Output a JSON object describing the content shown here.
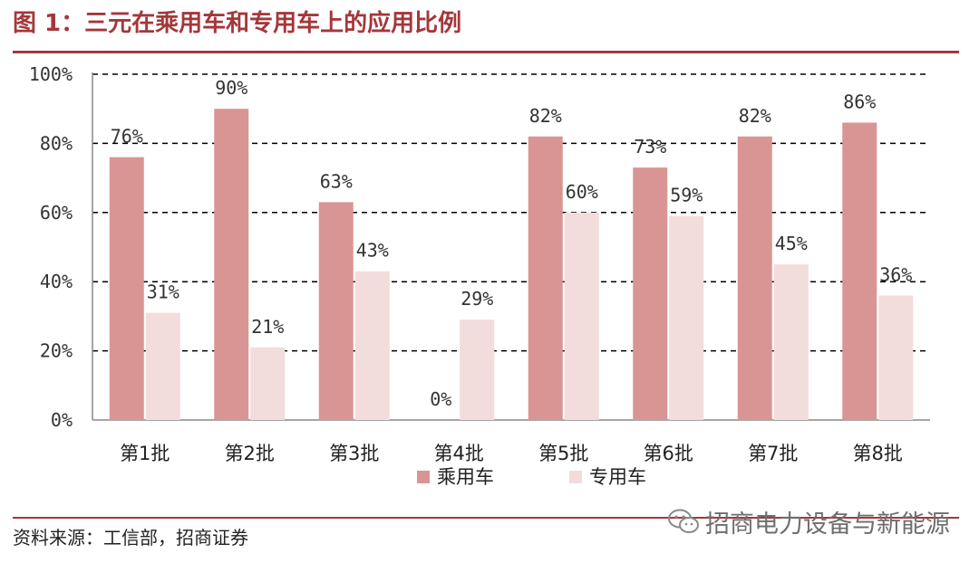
{
  "figure_title": "图 1：三元在乘用车和专用车上的应用比例",
  "source_note": "资料来源：工信部，招商证券",
  "watermark": {
    "text": "招商电力设备与新能源",
    "icon": "wechat-icon"
  },
  "colors": {
    "accent": "#a5373a",
    "series_passenger": "#d99593",
    "series_special": "#f3dcdc"
  },
  "chart_data": {
    "type": "bar",
    "categories": [
      "第1批",
      "第2批",
      "第3批",
      "第4批",
      "第5批",
      "第6批",
      "第7批",
      "第8批"
    ],
    "series": [
      {
        "name": "乘用车",
        "values": [
          76,
          90,
          63,
          0,
          82,
          73,
          82,
          86
        ],
        "labels": [
          "76%",
          "90%",
          "63%",
          "0%",
          "82%",
          "73%",
          "82%",
          "86%"
        ]
      },
      {
        "name": "专用车",
        "values": [
          31,
          21,
          43,
          29,
          60,
          59,
          45,
          36
        ],
        "labels": [
          "31%",
          "21%",
          "43%",
          "29%",
          "60%",
          "59%",
          "45%",
          "36%"
        ]
      }
    ],
    "ylim": [
      0,
      100
    ],
    "yticks": [
      0,
      20,
      40,
      60,
      80,
      100
    ],
    "ytick_labels": [
      "0%",
      "20%",
      "40%",
      "60%",
      "80%",
      "100%"
    ],
    "grid": true,
    "legend_position": "bottom-center"
  }
}
